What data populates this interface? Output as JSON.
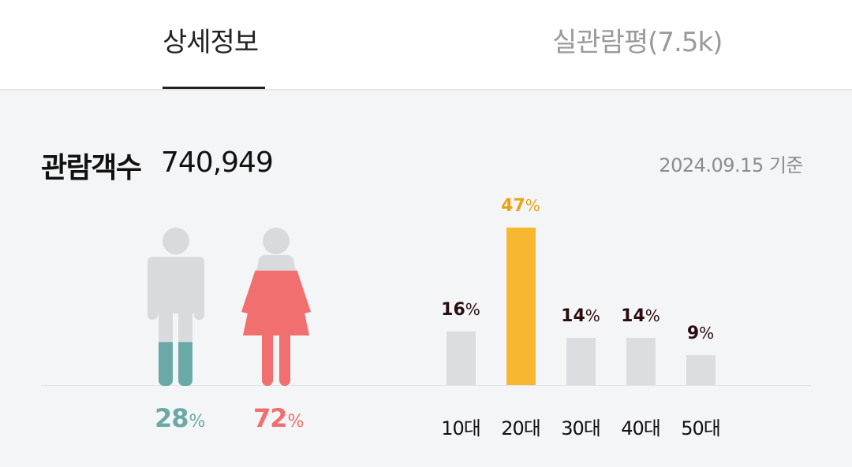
{
  "tabs": [
    {
      "label": "상세정보",
      "active": true
    },
    {
      "label": "실관람평(7.5k)",
      "active": false
    }
  ],
  "audience": {
    "title": "관람객수",
    "count": "740,949",
    "date": "2024.09.15 기준"
  },
  "gender": {
    "male": {
      "value": "28",
      "unit": "%",
      "color": "#6aa9a8",
      "fraction": 0.28
    },
    "female": {
      "value": "72",
      "unit": "%",
      "color": "#f16f6f",
      "fraction": 0.72
    },
    "base_color": "#d9dadd"
  },
  "chart_data": {
    "type": "bar",
    "categories": [
      "10대",
      "20대",
      "30대",
      "40대",
      "50대"
    ],
    "values": [
      16,
      47,
      14,
      14,
      9
    ],
    "value_unit": "%",
    "highlight_index": 1,
    "highlight_color": "#f7b731",
    "bar_color": "#dcdde0",
    "highlight_label_color": "#e8a415",
    "label_color": "#2b0d0d",
    "ylim": [
      0,
      47
    ]
  }
}
